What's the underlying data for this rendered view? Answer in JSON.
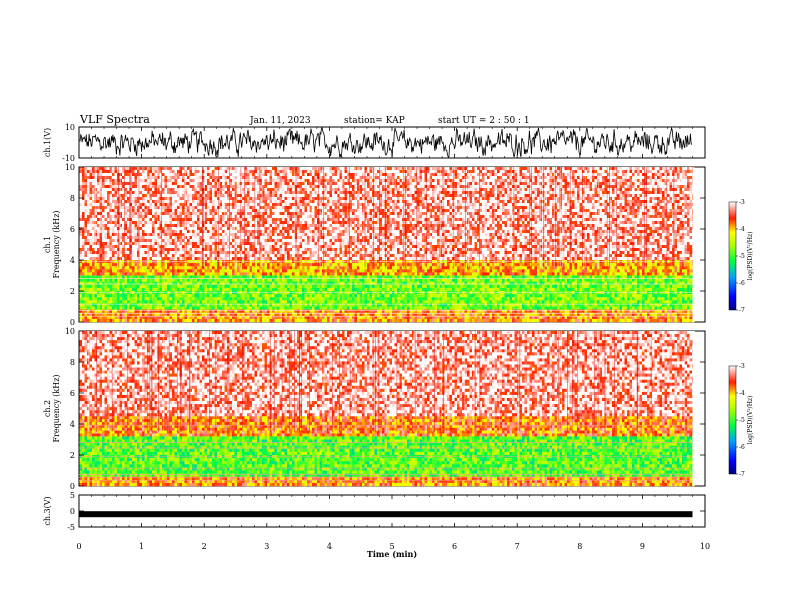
{
  "header": {
    "title": "VLF Spectra",
    "date": "Jan. 11, 2023",
    "station": "station= KAP",
    "start_ut": "start  UT =  2 : 50 : 1"
  },
  "colors": {
    "wave": "#000000",
    "hot": "#ff0000",
    "mid": "#ffff00",
    "cool": "#00ff00",
    "cold": "#0000ff"
  },
  "chart_data": [
    {
      "type": "line",
      "name": "ch1-waveform",
      "ylabel": "ch.1(V)",
      "ylim": [
        -10,
        10
      ],
      "yticks": [
        "10",
        "-10"
      ],
      "x_range": [
        0,
        9.8
      ]
    },
    {
      "type": "heatmap",
      "name": "ch1-spectrogram",
      "ylabel_top": "ch.1",
      "ylabel": "Frequency (kHz)",
      "ylim": [
        0,
        10
      ],
      "yticks": [
        "0",
        "2",
        "4",
        "6",
        "8",
        "10"
      ],
      "x_range": [
        0,
        9.8
      ],
      "colorbar": {
        "label": "log(PSD)(V²/Hz)",
        "range": [
          -7,
          -3
        ],
        "ticks": [
          "-3",
          "-4",
          "-5",
          "-6",
          "-7"
        ]
      },
      "bands_khz": [
        {
          "from": 4.0,
          "to": 10.0,
          "level": -3.2
        },
        {
          "from": 3.0,
          "to": 4.0,
          "level": -3.9
        },
        {
          "from": 0.8,
          "to": 3.0,
          "level": -4.8
        },
        {
          "from": 0.0,
          "to": 0.8,
          "level": -3.8
        }
      ]
    },
    {
      "type": "heatmap",
      "name": "ch2-spectrogram",
      "ylabel_top": "ch.2",
      "ylabel": "Frequency (kHz)",
      "ylim": [
        0,
        10
      ],
      "yticks": [
        "0",
        "2",
        "4",
        "6",
        "8",
        "10"
      ],
      "x_range": [
        0,
        9.8
      ],
      "colorbar": {
        "label": "log(PSD)(V²/Hz)",
        "range": [
          -7,
          -3
        ],
        "ticks": [
          "-3",
          "-4",
          "-5",
          "-6",
          "-7"
        ]
      },
      "bands_khz": [
        {
          "from": 4.5,
          "to": 10.0,
          "level": -3.2
        },
        {
          "from": 3.2,
          "to": 4.5,
          "level": -3.7
        },
        {
          "from": 0.6,
          "to": 3.2,
          "level": -4.9
        },
        {
          "from": 0.0,
          "to": 0.6,
          "level": -3.8
        }
      ]
    },
    {
      "type": "line",
      "name": "ch3-waveform",
      "ylabel": "ch.3(V)",
      "ylim": [
        -5,
        5
      ],
      "yticks": [
        "5",
        "0",
        "-5"
      ],
      "level": -1,
      "x_range": [
        0,
        9.8
      ]
    }
  ],
  "xaxis": {
    "label": "Time (min)",
    "range": [
      0,
      10
    ],
    "ticks": [
      "0",
      "1",
      "2",
      "3",
      "4",
      "5",
      "6",
      "7",
      "8",
      "9",
      "10"
    ]
  }
}
